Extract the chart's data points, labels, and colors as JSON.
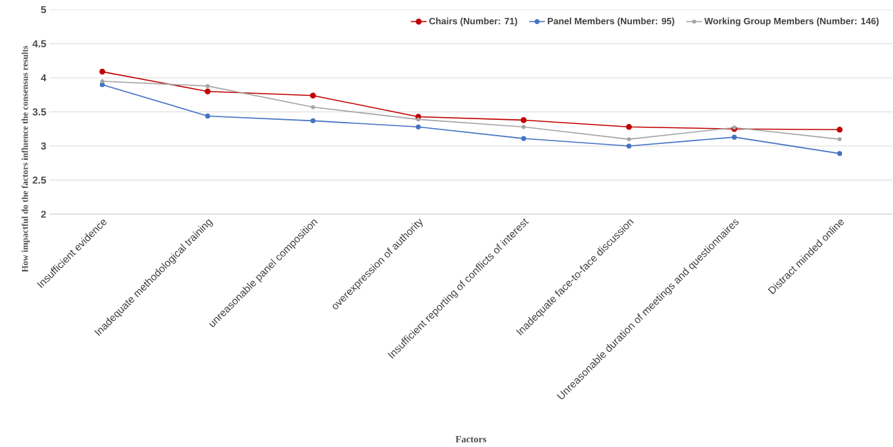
{
  "chart_data": {
    "type": "line",
    "xlabel": "Factors",
    "ylabel": "How impactful do the factors influence the consensus results",
    "categories": [
      "Insufficient evidence",
      "Inadequate methodological training",
      "unreasonable panel composition",
      "overexpression of authority",
      "Insufficient reporting of conflicts of interest",
      "Inadequate face-to-face discussion",
      "Unreasonable duration of meetings and questionnaires",
      "Distract minded online"
    ],
    "series": [
      {
        "name": "Chairs (Number: 71)",
        "color": "#c00000",
        "values": [
          4.09,
          3.8,
          3.74,
          3.43,
          3.38,
          3.28,
          3.25,
          3.24
        ]
      },
      {
        "name": "Panel Members (Number: 95)",
        "color": "#4472c4",
        "values": [
          3.9,
          3.44,
          3.37,
          3.28,
          3.11,
          3.0,
          3.13,
          2.89
        ]
      },
      {
        "name": "Working Group Members (Number: 146)",
        "color": "#a5a5a5",
        "values": [
          3.95,
          3.88,
          3.57,
          3.39,
          3.28,
          3.1,
          3.27,
          3.1
        ]
      }
    ],
    "ylim": [
      2,
      5
    ],
    "yticks": [
      2,
      2.5,
      3,
      3.5,
      4,
      4.5,
      5
    ],
    "grid": "y",
    "legend": "top right",
    "marker": "circle",
    "line_style": "solid"
  }
}
